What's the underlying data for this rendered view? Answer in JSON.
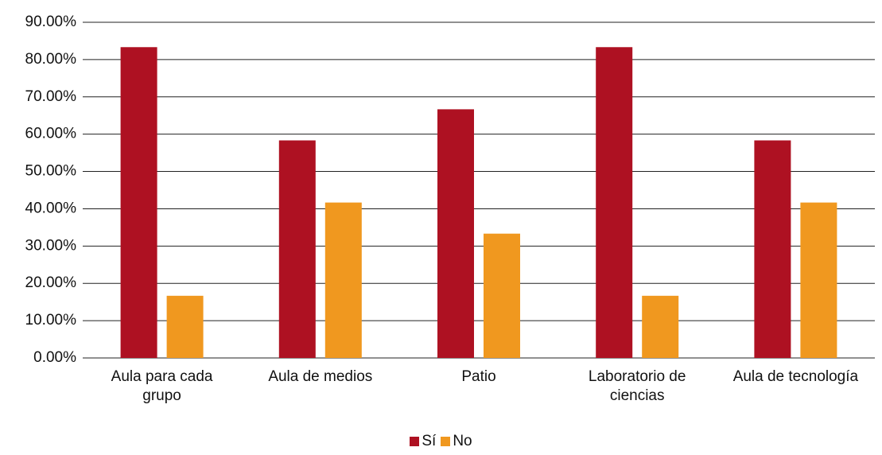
{
  "chart_data": {
    "type": "bar",
    "categories": [
      "Aula para cada grupo",
      "Aula de medios",
      "Patio",
      "Laboratorio de ciencias",
      "Aula de tecnología"
    ],
    "series": [
      {
        "name": "Sí",
        "color": "#ae1122",
        "values": [
          83.33,
          58.33,
          66.67,
          83.33,
          58.33
        ]
      },
      {
        "name": "No",
        "color": "#f0981f",
        "values": [
          16.67,
          41.67,
          33.33,
          16.67,
          41.67
        ]
      }
    ],
    "ylim": [
      0,
      90
    ],
    "yticks": [
      {
        "value": 0,
        "label": "0.00%"
      },
      {
        "value": 10,
        "label": "10.00%"
      },
      {
        "value": 20,
        "label": "20.00%"
      },
      {
        "value": 30,
        "label": "30.00%"
      },
      {
        "value": 40,
        "label": "40.00%"
      },
      {
        "value": 50,
        "label": "50.00%"
      },
      {
        "value": 60,
        "label": "60.00%"
      },
      {
        "value": 70,
        "label": "70.00%"
      },
      {
        "value": 80,
        "label": "80.00%"
      },
      {
        "value": 90,
        "label": "90.00%"
      }
    ],
    "grid": true,
    "legend": "bottom"
  }
}
